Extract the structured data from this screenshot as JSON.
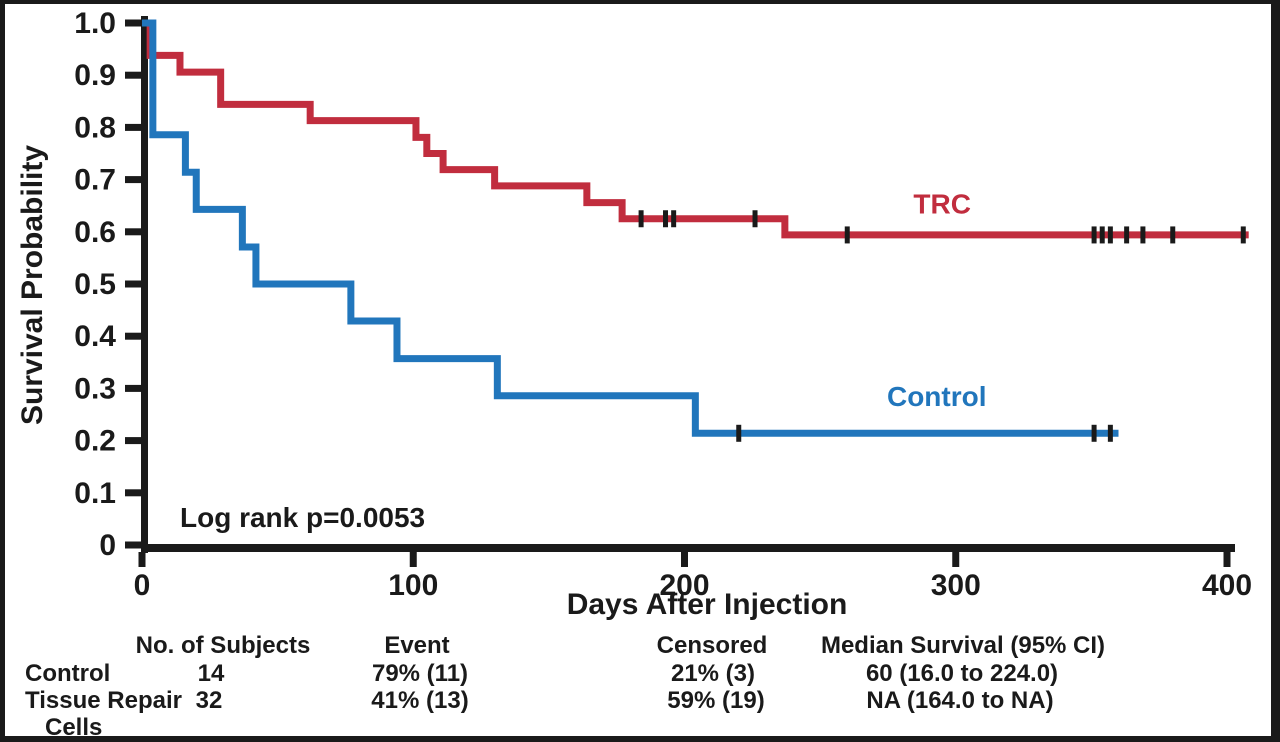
{
  "figure": {
    "background": "#ffffff",
    "frame_color": "#1a1a1a",
    "axis_color": "#1a1a1a"
  },
  "chart_data": {
    "type": "line",
    "subtype": "kaplan_meier_step",
    "title": "",
    "xlabel": "Days After Injection",
    "ylabel": "Survival Probability",
    "annotation": "Log rank p=0.0053",
    "xlim": [
      0,
      400
    ],
    "ylim": [
      0,
      1.0
    ],
    "grid": false,
    "x_ticks": [
      0,
      100,
      200,
      300,
      400
    ],
    "y_ticks": [
      {
        "label": "0",
        "value": 0
      },
      {
        "label": "0.1",
        "value": 0.1
      },
      {
        "label": "0.2",
        "value": 0.2
      },
      {
        "label": "0.3",
        "value": 0.3
      },
      {
        "label": "0.4",
        "value": 0.4
      },
      {
        "label": "0.5",
        "value": 0.5
      },
      {
        "label": "0.6",
        "value": 0.6
      },
      {
        "label": "0.7",
        "value": 0.7
      },
      {
        "label": "0.8",
        "value": 0.8
      },
      {
        "label": "0.9",
        "value": 0.9
      },
      {
        "label": "1.0",
        "value": 1.0
      }
    ],
    "series": [
      {
        "name": "TRC",
        "color": "#c12d3e",
        "n_subjects": 32,
        "steps": [
          [
            0,
            1.0
          ],
          [
            3,
            0.938
          ],
          [
            14,
            0.906
          ],
          [
            29,
            0.844
          ],
          [
            62,
            0.813
          ],
          [
            101,
            0.781
          ],
          [
            105,
            0.75
          ],
          [
            111,
            0.719
          ],
          [
            130,
            0.688
          ],
          [
            164,
            0.656
          ],
          [
            177,
            0.625
          ],
          [
            237,
            0.594
          ]
        ],
        "end_day": 408,
        "censored_days": [
          184,
          193,
          196,
          226,
          260,
          351,
          354,
          357,
          363,
          369,
          380,
          406
        ],
        "label_day": 295,
        "label_prob": 0.635
      },
      {
        "name": "Control",
        "color": "#2176bc",
        "n_subjects": 14,
        "steps": [
          [
            0,
            1.0
          ],
          [
            4,
            0.786
          ],
          [
            16,
            0.714
          ],
          [
            20,
            0.643
          ],
          [
            37,
            0.571
          ],
          [
            42,
            0.5
          ],
          [
            77,
            0.429
          ],
          [
            94,
            0.357
          ],
          [
            131,
            0.286
          ],
          [
            204,
            0.214
          ]
        ],
        "end_day": 360,
        "censored_days": [
          220,
          351,
          357
        ],
        "label_day": 293,
        "label_prob": 0.266
      }
    ]
  },
  "summary_table": {
    "col_headers": [
      "No. of Subjects",
      "Event",
      "Censored",
      "Median Survival (95% CI)"
    ],
    "rows": [
      {
        "label": "Control",
        "label_line2": "",
        "subjects": "14",
        "event": "79% (11)",
        "censored": "21% (3)",
        "median_survival": "60 (16.0 to 224.0)"
      },
      {
        "label": "Tissue Repair",
        "label_line2": "Cells",
        "subjects": "32",
        "event": "41% (13)",
        "censored": "59% (19)",
        "median_survival": "NA (164.0 to NA)"
      }
    ]
  }
}
